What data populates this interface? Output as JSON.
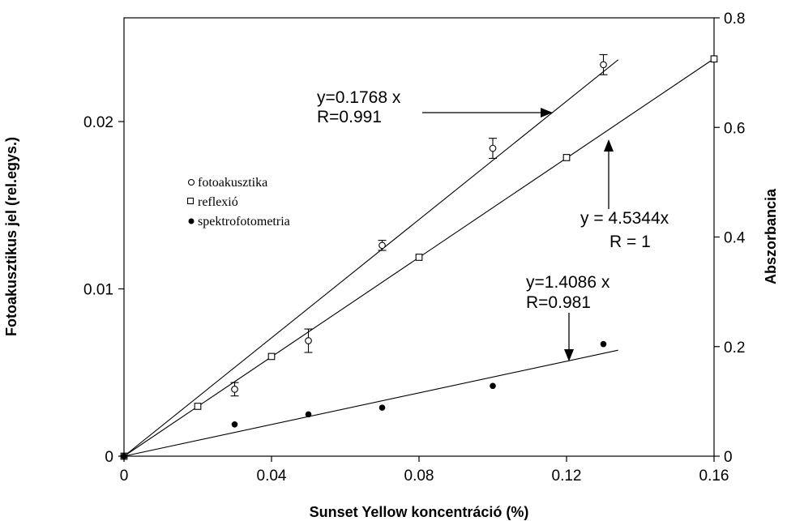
{
  "chart_data": {
    "type": "scatter",
    "xlabel": "Sunset Yellow koncentráció (%)",
    "ylabel_left": "Fotoakusztikus jel (rel.egys.)",
    "ylabel_right": "Abszorbancia",
    "xlim": [
      0,
      0.16
    ],
    "ylim_left": [
      0,
      0.0262
    ],
    "ylim_right": [
      0,
      0.8
    ],
    "x_ticks": [
      "0",
      "0.04",
      "0.08",
      "0.12",
      "0.16"
    ],
    "y_left_ticks": [
      "0",
      "0.01",
      "0.02"
    ],
    "y_right_ticks": [
      "0",
      "0.2",
      "0.4",
      "0.6",
      "0.8"
    ],
    "grid": false,
    "legend_position": "upper-left",
    "legend": [
      {
        "marker": "o",
        "label": "fotoakusztika"
      },
      {
        "marker": "□",
        "label": "reflexió"
      },
      {
        "marker": "●",
        "label": "spektrofotometria"
      }
    ],
    "series": [
      {
        "name": "fotoakusztika",
        "marker": "open-circle",
        "axis": "left",
        "x": [
          0,
          0.03,
          0.05,
          0.07,
          0.1,
          0.13
        ],
        "y": [
          0,
          0.004,
          0.0069,
          0.0126,
          0.0184,
          0.0234
        ],
        "err": [
          0,
          0.0004,
          0.0007,
          0.0003,
          0.0006,
          0.0006
        ],
        "fit_slope": 0.1768,
        "fit_xmax": 0.134
      },
      {
        "name": "reflexió",
        "marker": "open-square",
        "axis": "right",
        "x": [
          0,
          0.02,
          0.04,
          0.08,
          0.12,
          0.16
        ],
        "y": [
          0,
          0.091,
          0.182,
          0.363,
          0.545,
          0.725
        ],
        "fit_slope": 4.5344,
        "fit_xmax": 0.16
      },
      {
        "name": "spektrofotometria",
        "marker": "filled-circle",
        "axis": "left",
        "x": [
          0,
          0.03,
          0.05,
          0.07,
          0.1,
          0.13
        ],
        "y": [
          0,
          0.0019,
          0.0025,
          0.0029,
          0.0042,
          0.0067
        ],
        "fit_slope": 0.04728,
        "fit_xmax": 0.134
      }
    ],
    "annotations": [
      {
        "lines": [
          "y=0.1768 x",
          "R=0.991"
        ]
      },
      {
        "lines": [
          "y = 4.5344x",
          "R = 1"
        ]
      },
      {
        "lines": [
          "y=1.4086 x",
          "R=0.981"
        ]
      }
    ]
  }
}
